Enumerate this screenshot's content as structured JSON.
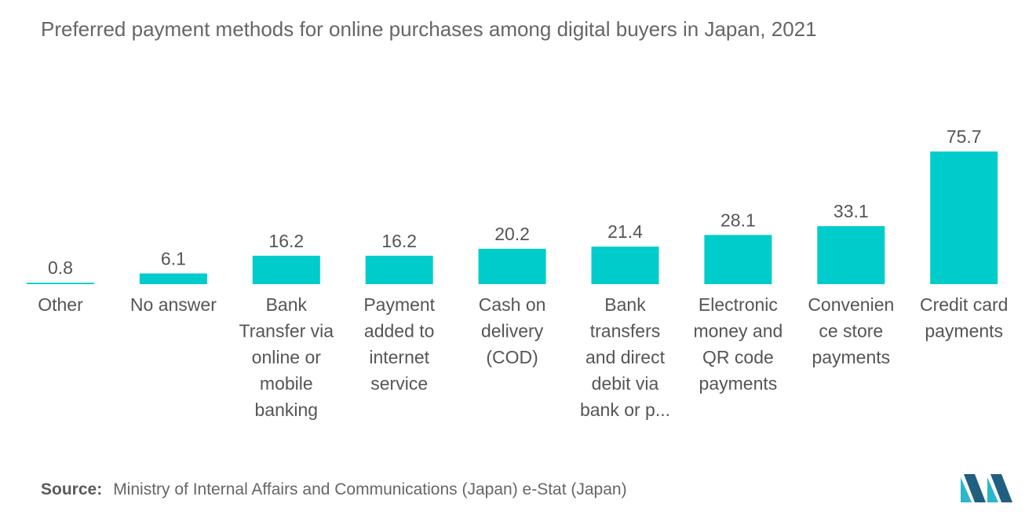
{
  "title": "Preferred payment methods for online purchases among digital buyers in Japan, 2021",
  "source": {
    "label": "Source:",
    "text": "Ministry of Internal Affairs and Communications (Japan) e-Stat (Japan)"
  },
  "colors": {
    "bar": "#00CCCC",
    "text": "#555555",
    "logo_dark": "#1F5F7F",
    "logo_light": "#2BB7C9"
  },
  "logo": {
    "icon": "mordor-intelligence-logo-icon"
  },
  "chart_data": {
    "type": "bar",
    "categories": [
      "Other",
      "No answer",
      "Bank Transfer via online or mobile banking",
      "Payment added to internet service",
      "Cash on delivery (COD)",
      "Bank transfers and direct debit via bank or p...",
      "Electronic money and QR code payments",
      "Convenience store payments",
      "Credit card payments"
    ],
    "category_lines": [
      [
        "Other"
      ],
      [
        "No answer"
      ],
      [
        "Bank",
        "Transfer via",
        "online or",
        "mobile",
        "banking"
      ],
      [
        "Payment",
        "added to",
        "internet",
        "service"
      ],
      [
        "Cash on",
        "delivery",
        "(COD)"
      ],
      [
        "Bank",
        "transfers",
        "and direct",
        "debit via",
        "bank or p..."
      ],
      [
        "Electronic",
        "money and",
        "QR code",
        "payments"
      ],
      [
        "Convenien",
        "ce store",
        "payments"
      ],
      [
        "Credit card",
        "payments"
      ]
    ],
    "values": [
      0.8,
      6.1,
      16.2,
      16.2,
      20.2,
      21.4,
      28.1,
      33.1,
      75.7
    ],
    "value_labels": [
      "0.8",
      "6.1",
      "16.2",
      "16.2",
      "20.2",
      "21.4",
      "28.1",
      "33.1",
      "75.7"
    ],
    "title": "Preferred payment methods for online purchases among digital buyers in Japan, 2021",
    "xlabel": "",
    "ylabel": "",
    "ylim": [
      0,
      75.7
    ],
    "grid": false,
    "legend": "none"
  }
}
